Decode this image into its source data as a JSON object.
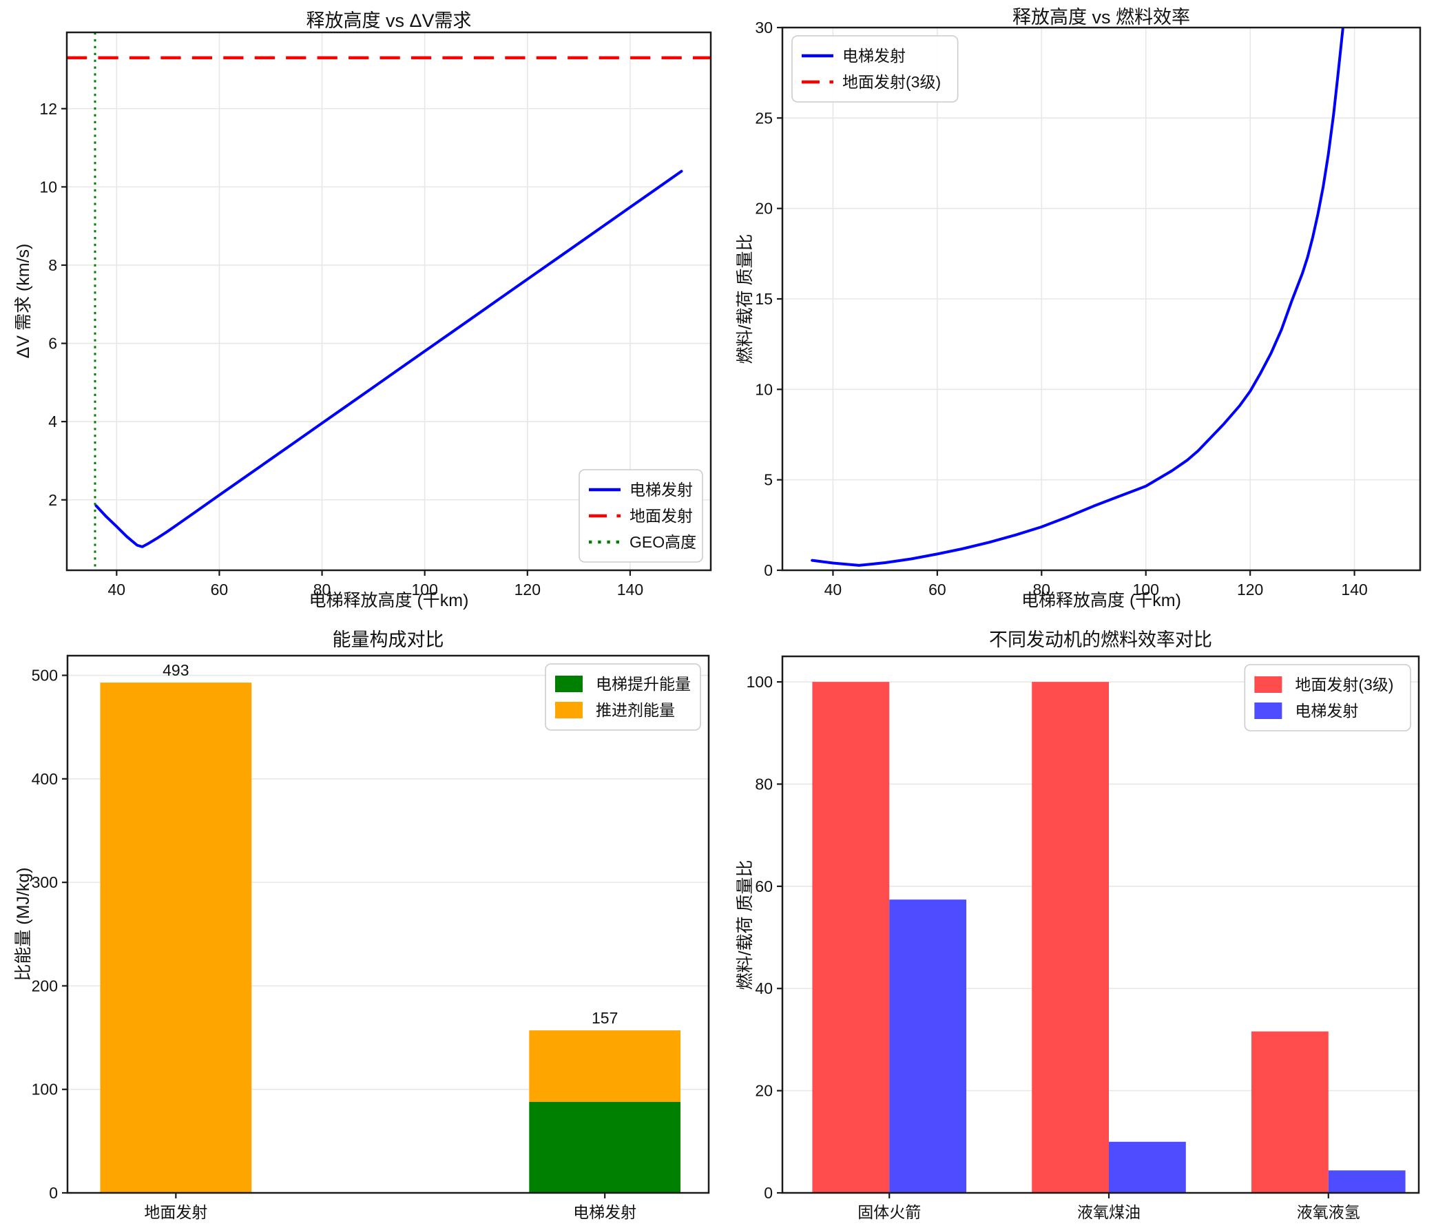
{
  "figure": {
    "background": "#ffffff",
    "text_color": "#111111",
    "grid_color": "#e7e7e7",
    "spine_color": "#1a1a1a"
  },
  "chart_data": [
    {
      "id": "release-height-vs-dv",
      "type": "line",
      "title": "释放高度 vs ΔV需求",
      "xlabel": "电梯释放高度 (千km)",
      "ylabel": "ΔV 需求 (km/s)",
      "xlim": [
        30.3,
        155.7
      ],
      "ylim": [
        0.2,
        13.95
      ],
      "xticks": [
        40,
        60,
        80,
        100,
        120,
        140
      ],
      "yticks": [
        2,
        4,
        6,
        8,
        10,
        12
      ],
      "grid": "both",
      "legend": {
        "position": "lower-right",
        "items": [
          {
            "label": "电梯发射",
            "type": "line",
            "dash": "solid",
            "color": "#0000ff"
          },
          {
            "label": "地面发射",
            "type": "line",
            "dash": "dashed",
            "color": "#ff0000"
          },
          {
            "label": "GEO高度",
            "type": "line",
            "dash": "dotted",
            "color": "#008000"
          }
        ]
      },
      "series": [
        {
          "name": "电梯发射",
          "kind": "xy",
          "color": "#0000ff",
          "width": 4,
          "dash": "solid",
          "points": [
            [
              36,
              1.85
            ],
            [
              38,
              1.57
            ],
            [
              40,
              1.32
            ],
            [
              42,
              1.06
            ],
            [
              44,
              0.84
            ],
            [
              45,
              0.8
            ],
            [
              46,
              0.87
            ],
            [
              48,
              1.03
            ],
            [
              50,
              1.2
            ],
            [
              55,
              1.66
            ],
            [
              60,
              2.12
            ],
            [
              65,
              2.58
            ],
            [
              70,
              3.04
            ],
            [
              75,
              3.5
            ],
            [
              80,
              3.96
            ],
            [
              85,
              4.42
            ],
            [
              90,
              4.88
            ],
            [
              95,
              5.34
            ],
            [
              100,
              5.8
            ],
            [
              105,
              6.26
            ],
            [
              110,
              6.72
            ],
            [
              115,
              7.18
            ],
            [
              120,
              7.64
            ],
            [
              125,
              8.1
            ],
            [
              130,
              8.56
            ],
            [
              135,
              9.02
            ],
            [
              140,
              9.48
            ],
            [
              145,
              9.94
            ],
            [
              150,
              10.4
            ]
          ]
        },
        {
          "name": "地面发射",
          "kind": "hline",
          "color": "#ff0000",
          "width": 4.5,
          "dash": "dashed",
          "y": 13.3
        },
        {
          "name": "GEO高度",
          "kind": "vline",
          "color": "#008000",
          "width": 3,
          "dash": "dotted",
          "x": 35.8
        }
      ]
    },
    {
      "id": "release-height-vs-fuel-efficiency",
      "type": "line",
      "title": "释放高度 vs 燃料效率",
      "xlabel": "电梯释放高度 (千km)",
      "ylabel": "燃料/载荷 质量比",
      "xlim": [
        30.3,
        152.6
      ],
      "ylim": [
        0,
        30
      ],
      "xticks": [
        40,
        60,
        80,
        100,
        120,
        140
      ],
      "yticks": [
        0,
        5,
        10,
        15,
        20,
        25,
        30
      ],
      "grid": "both",
      "legend": {
        "position": "upper-left",
        "items": [
          {
            "label": "电梯发射",
            "type": "line",
            "dash": "solid",
            "color": "#0000ff"
          },
          {
            "label": "地面发射(3级)",
            "type": "line",
            "dash": "dashed",
            "color": "#ff0000"
          }
        ]
      },
      "series": [
        {
          "name": "电梯发射",
          "kind": "xy",
          "color": "#0000ff",
          "width": 4,
          "dash": "solid",
          "points": [
            [
              36,
              0.55
            ],
            [
              40,
              0.4
            ],
            [
              45,
              0.27
            ],
            [
              50,
              0.42
            ],
            [
              55,
              0.63
            ],
            [
              60,
              0.9
            ],
            [
              65,
              1.2
            ],
            [
              70,
              1.55
            ],
            [
              75,
              1.95
            ],
            [
              80,
              2.4
            ],
            [
              85,
              2.95
            ],
            [
              90,
              3.55
            ],
            [
              95,
              4.1
            ],
            [
              100,
              4.65
            ],
            [
              105,
              5.5
            ],
            [
              108,
              6.1
            ],
            [
              110,
              6.6
            ],
            [
              112,
              7.2
            ],
            [
              115,
              8.1
            ],
            [
              118,
              9.1
            ],
            [
              120,
              9.9
            ],
            [
              122,
              10.9
            ],
            [
              124,
              12.0
            ],
            [
              126,
              13.3
            ],
            [
              128,
              14.9
            ],
            [
              130,
              16.4
            ],
            [
              131,
              17.3
            ],
            [
              132,
              18.4
            ],
            [
              133,
              19.7
            ],
            [
              134,
              21.2
            ],
            [
              135,
              23.0
            ],
            [
              136,
              25.2
            ],
            [
              136.8,
              27.3
            ],
            [
              137.5,
              29.2
            ],
            [
              137.8,
              30
            ]
          ]
        }
      ]
    },
    {
      "id": "energy-composition",
      "type": "bar-stacked",
      "title": "能量构成对比",
      "xlabel": "",
      "ylabel": "比能量 (MJ/kg)",
      "categories": [
        "地面发射",
        "电梯发射"
      ],
      "category_pos": [
        0.169,
        0.838
      ],
      "bar_halfwidth_frac": 0.118,
      "ylim": [
        0,
        519
      ],
      "yticks": [
        0,
        100,
        200,
        300,
        400,
        500
      ],
      "grid": "y",
      "legend": {
        "position": "upper-right",
        "items": [
          {
            "label": "电梯提升能量",
            "type": "patch",
            "color": "#008000"
          },
          {
            "label": "推进剂能量",
            "type": "patch",
            "color": "#ffa500"
          }
        ]
      },
      "series": [
        {
          "name": "电梯提升能量",
          "color": "#008000",
          "values": [
            0,
            88
          ]
        },
        {
          "name": "推进剂能量",
          "color": "#ffa500",
          "values": [
            493,
            69
          ]
        }
      ],
      "totals": [
        "493",
        "157"
      ]
    },
    {
      "id": "engine-fuel-efficiency",
      "type": "bar-grouped",
      "title": "不同发动机的燃料效率对比",
      "xlabel": "",
      "ylabel": "燃料/载荷 质量比",
      "categories": [
        "固体火箭",
        "液氧煤油",
        "液氧液氢"
      ],
      "category_pos": [
        0.168,
        0.513,
        0.858
      ],
      "bar_width_frac": 0.121,
      "ylim": [
        0,
        105
      ],
      "yticks": [
        0,
        20,
        40,
        60,
        80,
        100
      ],
      "grid": "y",
      "legend": {
        "position": "upper-right",
        "items": [
          {
            "label": "地面发射(3级)",
            "type": "patch",
            "color": "#ff4d4d"
          },
          {
            "label": "电梯发射",
            "type": "patch",
            "color": "#4d4dff"
          }
        ]
      },
      "series": [
        {
          "name": "地面发射(3级)",
          "color": "#ff4d4d",
          "values": [
            100,
            100,
            31.6
          ]
        },
        {
          "name": "电梯发射",
          "color": "#4d4dff",
          "values": [
            57.4,
            10,
            4.4
          ]
        }
      ],
      "totals": []
    }
  ]
}
